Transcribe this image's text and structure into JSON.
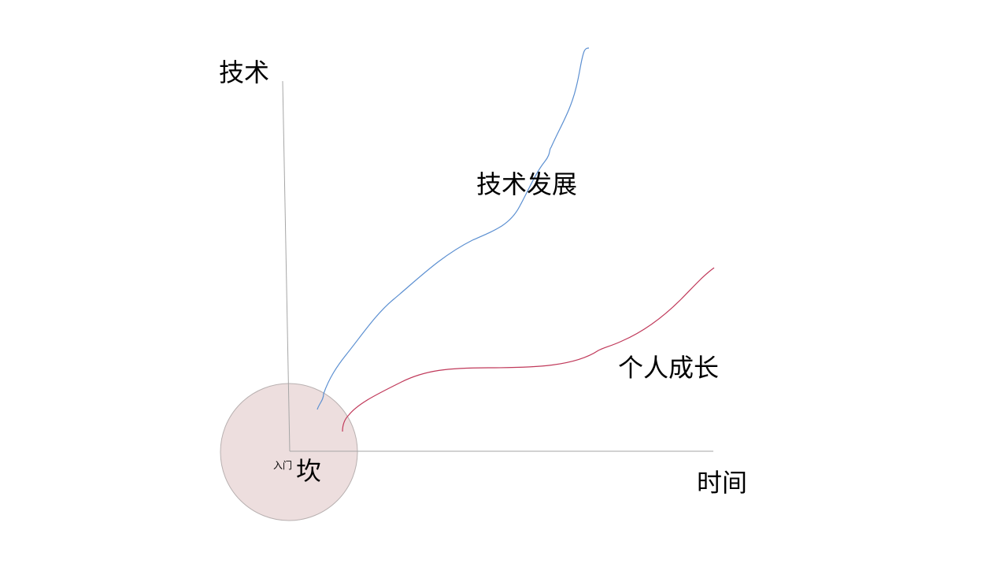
{
  "labels": {
    "y_axis": "技术",
    "x_axis": "时间",
    "tech_curve": "技术发展",
    "personal_curve": "个人成长",
    "pit_small": "入门",
    "pit_big": "坎"
  },
  "colors": {
    "tech_curve": "#5b8fd1",
    "personal_curve": "#c0395a",
    "axis": "#a6a6a6",
    "circle_fill": "#eddede",
    "circle_stroke": "#b8b0b0"
  }
}
